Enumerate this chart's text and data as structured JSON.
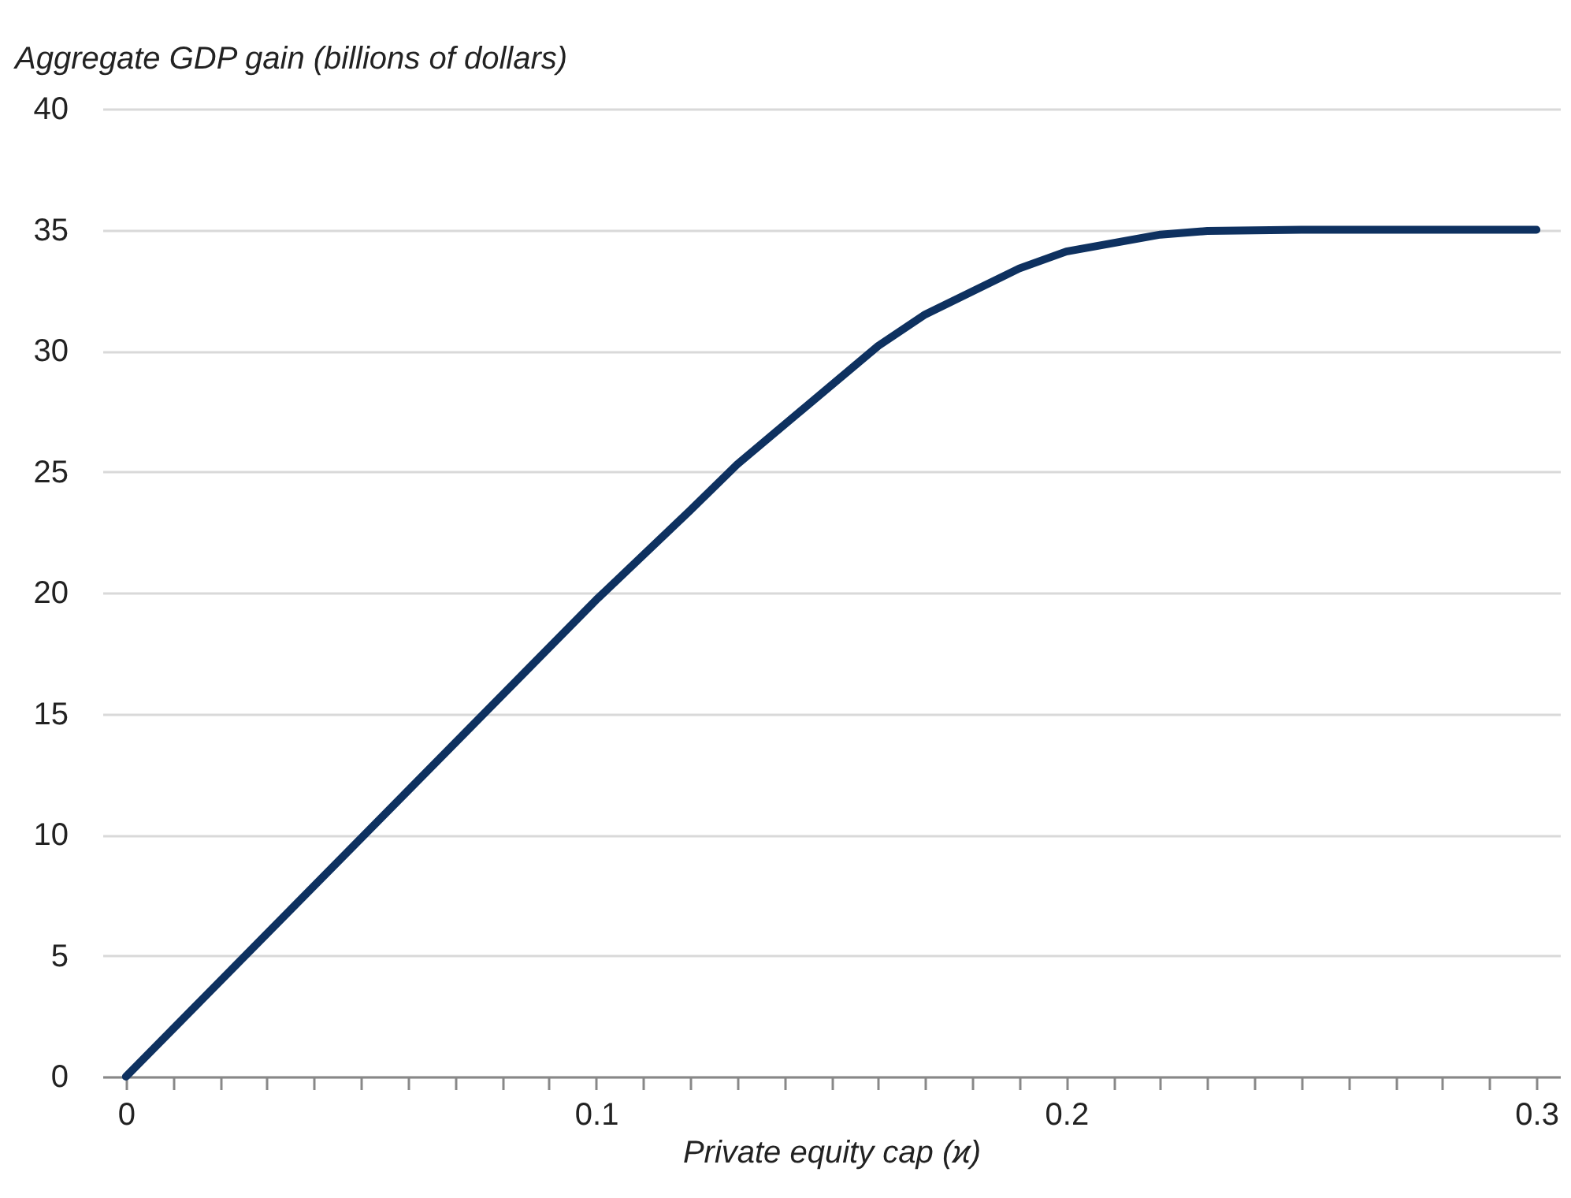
{
  "chart_data": {
    "type": "line",
    "ylabel": "Aggregate GDP gain (billions of dollars)",
    "xlabel": "Private equity cap (ϰ)",
    "x": [
      0,
      0.1,
      0.12,
      0.13,
      0.16,
      0.17,
      0.19,
      0.2,
      0.22,
      0.23,
      0.25,
      0.3
    ],
    "series": [
      {
        "color": "#0e3160",
        "values": [
          0,
          19.7,
          23.4,
          25.3,
          30.2,
          31.5,
          33.4,
          34.1,
          34.8,
          34.95,
          35,
          35
        ]
      }
    ],
    "xlim": [
      -0.005,
      0.305
    ],
    "xticks": [
      0,
      {
        "value": 0.01,
        "label": null
      },
      {
        "value": 0.02,
        "label": null
      },
      {
        "value": 0.03,
        "label": null
      },
      {
        "value": 0.04,
        "label": null
      },
      {
        "value": 0.05,
        "label": null
      },
      {
        "value": 0.06,
        "label": null
      },
      {
        "value": 0.07,
        "label": null
      },
      {
        "value": 0.08,
        "label": null
      },
      {
        "value": 0.09,
        "label": null
      },
      0.1,
      {
        "value": 0.11,
        "label": null
      },
      {
        "value": 0.12,
        "label": null
      },
      {
        "value": 0.13,
        "label": null
      },
      {
        "value": 0.14,
        "label": null
      },
      {
        "value": 0.15,
        "label": null
      },
      {
        "value": 0.16,
        "label": null
      },
      {
        "value": 0.17,
        "label": null
      },
      {
        "value": 0.18,
        "label": null
      },
      {
        "value": 0.19,
        "label": null
      },
      0.2,
      {
        "value": 0.21,
        "label": null
      },
      {
        "value": 0.22,
        "label": null
      },
      {
        "value": 0.23,
        "label": null
      },
      {
        "value": 0.24,
        "label": null
      },
      {
        "value": 0.25,
        "label": null
      },
      {
        "value": 0.26,
        "label": null
      },
      {
        "value": 0.27,
        "label": null
      },
      {
        "value": 0.28,
        "label": null
      },
      {
        "value": 0.29,
        "label": null
      },
      0.3
    ],
    "ylim": [
      0,
      40
    ],
    "yticks": [
      0,
      5,
      10,
      15,
      20,
      25,
      30,
      35,
      40
    ],
    "grid": "y"
  }
}
